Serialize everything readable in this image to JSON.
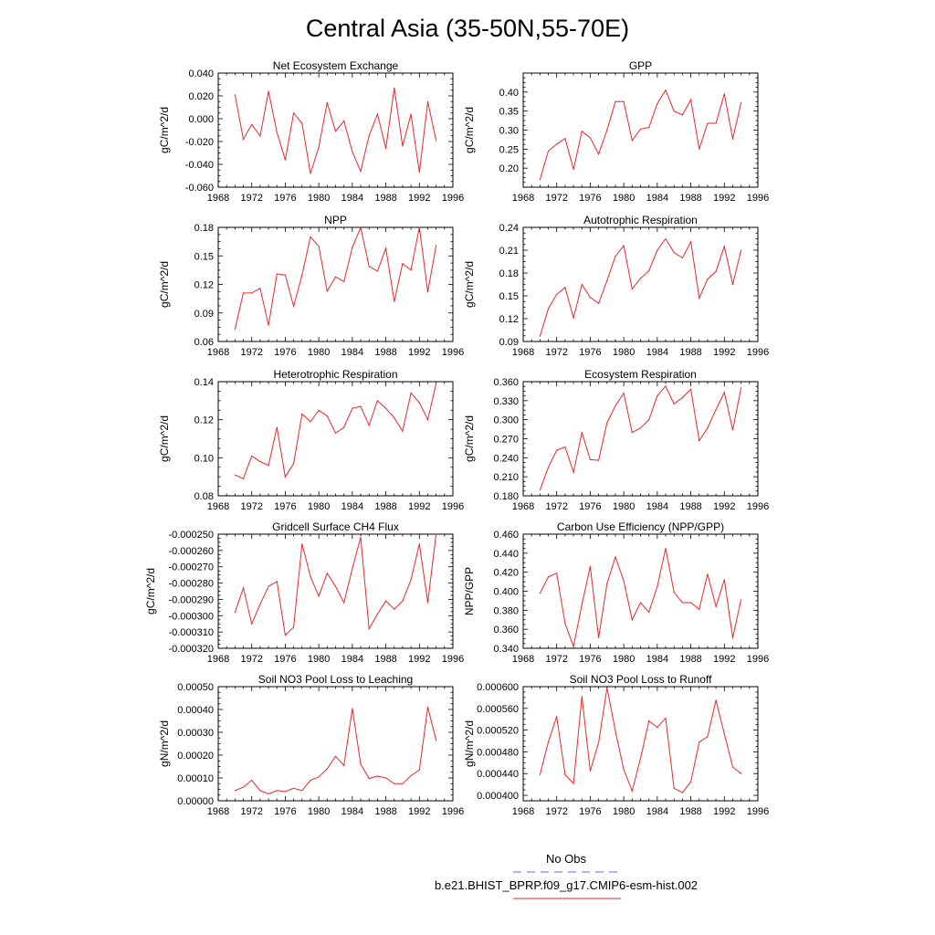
{
  "figure": {
    "title": "Central Asia (35-50N,55-70E)"
  },
  "legend": {
    "obs_label": "No Obs",
    "obs_color": "#6a6ad8",
    "model_label": "b.e21.BHIST_BPRP.f09_g17.CMIP6-esm-hist.002",
    "model_color": "#e8272a"
  },
  "series_color": "#e8272a",
  "chart_data": [
    {
      "type": "line",
      "title": "Net Ecosystem Exchange",
      "ylabel": "gC/m^2/d",
      "xlim": [
        1968,
        1996
      ],
      "xticks": [
        1968,
        1972,
        1976,
        1980,
        1984,
        1988,
        1992,
        1996
      ],
      "ylim": [
        -0.06,
        0.04
      ],
      "yticks": [
        -0.06,
        -0.04,
        -0.02,
        0.0,
        0.02,
        0.04
      ],
      "ytick_labels": [
        "-0.060",
        "-0.040",
        "-0.020",
        "0.000",
        "0.020",
        "0.040"
      ],
      "x": [
        1970,
        1971,
        1972,
        1973,
        1974,
        1975,
        1976,
        1977,
        1978,
        1979,
        1980,
        1981,
        1982,
        1983,
        1984,
        1985,
        1986,
        1987,
        1988,
        1989,
        1990,
        1991,
        1992,
        1993,
        1994
      ],
      "values": [
        0.021,
        -0.018,
        -0.005,
        -0.015,
        0.024,
        -0.012,
        -0.036,
        0.005,
        -0.004,
        -0.048,
        -0.025,
        0.014,
        -0.011,
        -0.002,
        -0.029,
        -0.046,
        -0.015,
        0.004,
        -0.026,
        0.027,
        -0.024,
        0.004,
        -0.047,
        0.015,
        -0.019
      ]
    },
    {
      "type": "line",
      "title": "GPP",
      "ylabel": "gC/m^2/d",
      "xlim": [
        1968,
        1996
      ],
      "xticks": [
        1968,
        1972,
        1976,
        1980,
        1984,
        1988,
        1992,
        1996
      ],
      "ylim": [
        0.15,
        0.45
      ],
      "yticks": [
        0.2,
        0.25,
        0.3,
        0.35,
        0.4
      ],
      "ytick_labels": [
        "0.20",
        "0.25",
        "0.30",
        "0.35",
        "0.40"
      ],
      "x": [
        1970,
        1971,
        1972,
        1973,
        1974,
        1975,
        1976,
        1977,
        1978,
        1979,
        1980,
        1981,
        1982,
        1983,
        1984,
        1985,
        1986,
        1987,
        1988,
        1989,
        1990,
        1991,
        1992,
        1993,
        1994
      ],
      "values": [
        0.17,
        0.245,
        0.263,
        0.278,
        0.197,
        0.297,
        0.28,
        0.237,
        0.3,
        0.375,
        0.375,
        0.273,
        0.303,
        0.307,
        0.37,
        0.405,
        0.35,
        0.34,
        0.38,
        0.25,
        0.318,
        0.318,
        0.395,
        0.277,
        0.372
      ]
    },
    {
      "type": "line",
      "title": "NPP",
      "ylabel": "gC/m^2/d",
      "xlim": [
        1968,
        1996
      ],
      "xticks": [
        1968,
        1972,
        1976,
        1980,
        1984,
        1988,
        1992,
        1996
      ],
      "ylim": [
        0.06,
        0.18
      ],
      "yticks": [
        0.06,
        0.09,
        0.12,
        0.15,
        0.18
      ],
      "ytick_labels": [
        "0.06",
        "0.09",
        "0.12",
        "0.15",
        "0.18"
      ],
      "x": [
        1970,
        1971,
        1972,
        1973,
        1974,
        1975,
        1976,
        1977,
        1978,
        1979,
        1980,
        1981,
        1982,
        1983,
        1984,
        1985,
        1986,
        1987,
        1988,
        1989,
        1990,
        1991,
        1992,
        1993,
        1994
      ],
      "values": [
        0.073,
        0.111,
        0.111,
        0.116,
        0.077,
        0.131,
        0.13,
        0.097,
        0.13,
        0.17,
        0.16,
        0.113,
        0.128,
        0.123,
        0.159,
        0.18,
        0.139,
        0.134,
        0.158,
        0.102,
        0.142,
        0.135,
        0.18,
        0.112,
        0.161
      ]
    },
    {
      "type": "line",
      "title": "Autotrophic Respiration",
      "ylabel": "gC/m^2/d",
      "xlim": [
        1968,
        1996
      ],
      "xticks": [
        1968,
        1972,
        1976,
        1980,
        1984,
        1988,
        1992,
        1996
      ],
      "ylim": [
        0.09,
        0.24
      ],
      "yticks": [
        0.09,
        0.12,
        0.15,
        0.18,
        0.21,
        0.24
      ],
      "ytick_labels": [
        "0.09",
        "0.12",
        "0.15",
        "0.18",
        "0.21",
        "0.24"
      ],
      "x": [
        1970,
        1971,
        1972,
        1973,
        1974,
        1975,
        1976,
        1977,
        1978,
        1979,
        1980,
        1981,
        1982,
        1983,
        1984,
        1985,
        1986,
        1987,
        1988,
        1989,
        1990,
        1991,
        1992,
        1993,
        1994
      ],
      "values": [
        0.097,
        0.133,
        0.152,
        0.161,
        0.121,
        0.165,
        0.148,
        0.14,
        0.17,
        0.202,
        0.216,
        0.159,
        0.173,
        0.183,
        0.21,
        0.225,
        0.207,
        0.2,
        0.221,
        0.147,
        0.172,
        0.182,
        0.215,
        0.165,
        0.21
      ]
    },
    {
      "type": "line",
      "title": "Heterotrophic Respiration",
      "ylabel": "gC/m^2/d",
      "xlim": [
        1968,
        1996
      ],
      "xticks": [
        1968,
        1972,
        1976,
        1980,
        1984,
        1988,
        1992,
        1996
      ],
      "ylim": [
        0.08,
        0.14
      ],
      "yticks": [
        0.08,
        0.1,
        0.12,
        0.14
      ],
      "ytick_labels": [
        "0.08",
        "0.10",
        "0.12",
        "0.14"
      ],
      "x": [
        1970,
        1971,
        1972,
        1973,
        1974,
        1975,
        1976,
        1977,
        1978,
        1979,
        1980,
        1981,
        1982,
        1983,
        1984,
        1985,
        1986,
        1987,
        1988,
        1989,
        1990,
        1991,
        1992,
        1993,
        1994
      ],
      "values": [
        0.091,
        0.089,
        0.101,
        0.098,
        0.096,
        0.116,
        0.09,
        0.097,
        0.123,
        0.119,
        0.125,
        0.122,
        0.113,
        0.116,
        0.126,
        0.127,
        0.117,
        0.13,
        0.126,
        0.121,
        0.114,
        0.134,
        0.129,
        0.12,
        0.139
      ]
    },
    {
      "type": "line",
      "title": "Ecosystem Respiration",
      "ylabel": "gC/m^2/d",
      "xlim": [
        1968,
        1996
      ],
      "xticks": [
        1968,
        1972,
        1976,
        1980,
        1984,
        1988,
        1992,
        1996
      ],
      "ylim": [
        0.18,
        0.36
      ],
      "yticks": [
        0.18,
        0.21,
        0.24,
        0.27,
        0.3,
        0.33,
        0.36
      ],
      "ytick_labels": [
        "0.180",
        "0.210",
        "0.240",
        "0.270",
        "0.300",
        "0.330",
        "0.360"
      ],
      "x": [
        1970,
        1971,
        1972,
        1973,
        1974,
        1975,
        1976,
        1977,
        1978,
        1979,
        1980,
        1981,
        1982,
        1983,
        1984,
        1985,
        1986,
        1987,
        1988,
        1989,
        1990,
        1991,
        1992,
        1993,
        1994
      ],
      "values": [
        0.189,
        0.225,
        0.252,
        0.257,
        0.217,
        0.28,
        0.237,
        0.236,
        0.295,
        0.322,
        0.342,
        0.28,
        0.287,
        0.3,
        0.338,
        0.353,
        0.325,
        0.335,
        0.348,
        0.267,
        0.287,
        0.316,
        0.343,
        0.284,
        0.35
      ]
    },
    {
      "type": "line",
      "title": "Gridcell Surface CH4 Flux",
      "ylabel": "gC/m^2/d",
      "xlim": [
        1968,
        1996
      ],
      "xticks": [
        1968,
        1972,
        1976,
        1980,
        1984,
        1988,
        1992,
        1996
      ],
      "ylim": [
        -0.00032,
        -0.00025
      ],
      "yticks": [
        -0.00032,
        -0.00031,
        -0.0003,
        -0.00029,
        -0.00028,
        -0.00027,
        -0.00026,
        -0.00025
      ],
      "ytick_labels": [
        "-0.000320",
        "-0.000310",
        "-0.000300",
        "-0.000290",
        "-0.000280",
        "-0.000270",
        "-0.000260",
        "-0.000250"
      ],
      "x": [
        1970,
        1971,
        1972,
        1973,
        1974,
        1975,
        1976,
        1977,
        1978,
        1979,
        1980,
        1981,
        1982,
        1983,
        1984,
        1985,
        1986,
        1987,
        1988,
        1989,
        1990,
        1991,
        1992,
        1993,
        1994
      ],
      "values": [
        -0.000298,
        -0.000283,
        -0.000305,
        -0.000293,
        -0.000282,
        -0.000279,
        -0.000312,
        -0.000307,
        -0.000256,
        -0.000276,
        -0.000288,
        -0.000274,
        -0.000282,
        -0.000292,
        -0.000271,
        -0.000252,
        -0.000308,
        -0.000299,
        -0.000291,
        -0.000296,
        -0.000291,
        -0.000278,
        -0.000256,
        -0.000292,
        -0.00025
      ]
    },
    {
      "type": "line",
      "title": "Carbon Use Efficiency (NPP/GPP)",
      "ylabel": "NPP/GPP",
      "xlim": [
        1968,
        1996
      ],
      "xticks": [
        1968,
        1972,
        1976,
        1980,
        1984,
        1988,
        1992,
        1996
      ],
      "ylim": [
        0.34,
        0.46
      ],
      "yticks": [
        0.34,
        0.36,
        0.38,
        0.4,
        0.42,
        0.44,
        0.46
      ],
      "ytick_labels": [
        "0.340",
        "0.360",
        "0.380",
        "0.400",
        "0.420",
        "0.440",
        "0.460"
      ],
      "x": [
        1970,
        1971,
        1972,
        1973,
        1974,
        1975,
        1976,
        1977,
        1978,
        1979,
        1980,
        1981,
        1982,
        1983,
        1984,
        1985,
        1986,
        1987,
        1988,
        1989,
        1990,
        1991,
        1992,
        1993,
        1994
      ],
      "values": [
        0.398,
        0.415,
        0.419,
        0.366,
        0.342,
        0.386,
        0.426,
        0.351,
        0.408,
        0.436,
        0.411,
        0.37,
        0.388,
        0.378,
        0.405,
        0.445,
        0.399,
        0.388,
        0.388,
        0.381,
        0.418,
        0.384,
        0.412,
        0.351,
        0.391
      ]
    },
    {
      "type": "line",
      "title": "Soil NO3 Pool Loss to Leaching",
      "ylabel": "gN/m^2/d",
      "xlim": [
        1968,
        1996
      ],
      "xticks": [
        1968,
        1972,
        1976,
        1980,
        1984,
        1988,
        1992,
        1996
      ],
      "ylim": [
        0.0,
        0.0005
      ],
      "yticks": [
        0.0,
        0.0001,
        0.0002,
        0.0003,
        0.0004,
        0.0005
      ],
      "ytick_labels": [
        "0.00000",
        "0.00010",
        "0.00020",
        "0.00030",
        "0.00040",
        "0.00050"
      ],
      "x": [
        1970,
        1971,
        1972,
        1973,
        1974,
        1975,
        1976,
        1977,
        1978,
        1979,
        1980,
        1981,
        1982,
        1983,
        1984,
        1985,
        1986,
        1987,
        1988,
        1989,
        1990,
        1991,
        1992,
        1993,
        1994
      ],
      "values": [
        4.5e-05,
        6e-05,
        9e-05,
        4.5e-05,
        3e-05,
        4.5e-05,
        4e-05,
        5.5e-05,
        4.5e-05,
        9e-05,
        0.000105,
        0.00014,
        0.000195,
        0.000155,
        0.000405,
        0.00016,
        9.8e-05,
        0.000108,
        0.0001,
        7.5e-05,
        7.5e-05,
        0.00011,
        0.000135,
        0.00041,
        0.000265
      ]
    },
    {
      "type": "line",
      "title": "Soil NO3 Pool Loss to Runoff",
      "ylabel": "gN/m^2/d",
      "xlim": [
        1968,
        1996
      ],
      "xticks": [
        1968,
        1972,
        1976,
        1980,
        1984,
        1988,
        1992,
        1996
      ],
      "ylim": [
        0.00039,
        0.0006
      ],
      "yticks": [
        0.0004,
        0.00044,
        0.00048,
        0.00052,
        0.00056,
        0.0006
      ],
      "ytick_labels": [
        "0.000400",
        "0.000440",
        "0.000480",
        "0.000520",
        "0.000560",
        "0.000600"
      ],
      "x": [
        1970,
        1971,
        1972,
        1973,
        1974,
        1975,
        1976,
        1977,
        1978,
        1979,
        1980,
        1981,
        1982,
        1983,
        1984,
        1985,
        1986,
        1987,
        1988,
        1989,
        1990,
        1991,
        1992,
        1993,
        1994
      ],
      "values": [
        0.000438,
        0.000498,
        0.000545,
        0.000438,
        0.000422,
        0.000582,
        0.000445,
        0.000497,
        0.000598,
        0.000518,
        0.000448,
        0.000408,
        0.000468,
        0.000537,
        0.000525,
        0.000542,
        0.000413,
        0.000405,
        0.000425,
        0.000498,
        0.000508,
        0.000575,
        0.000513,
        0.000452,
        0.00044
      ]
    }
  ]
}
